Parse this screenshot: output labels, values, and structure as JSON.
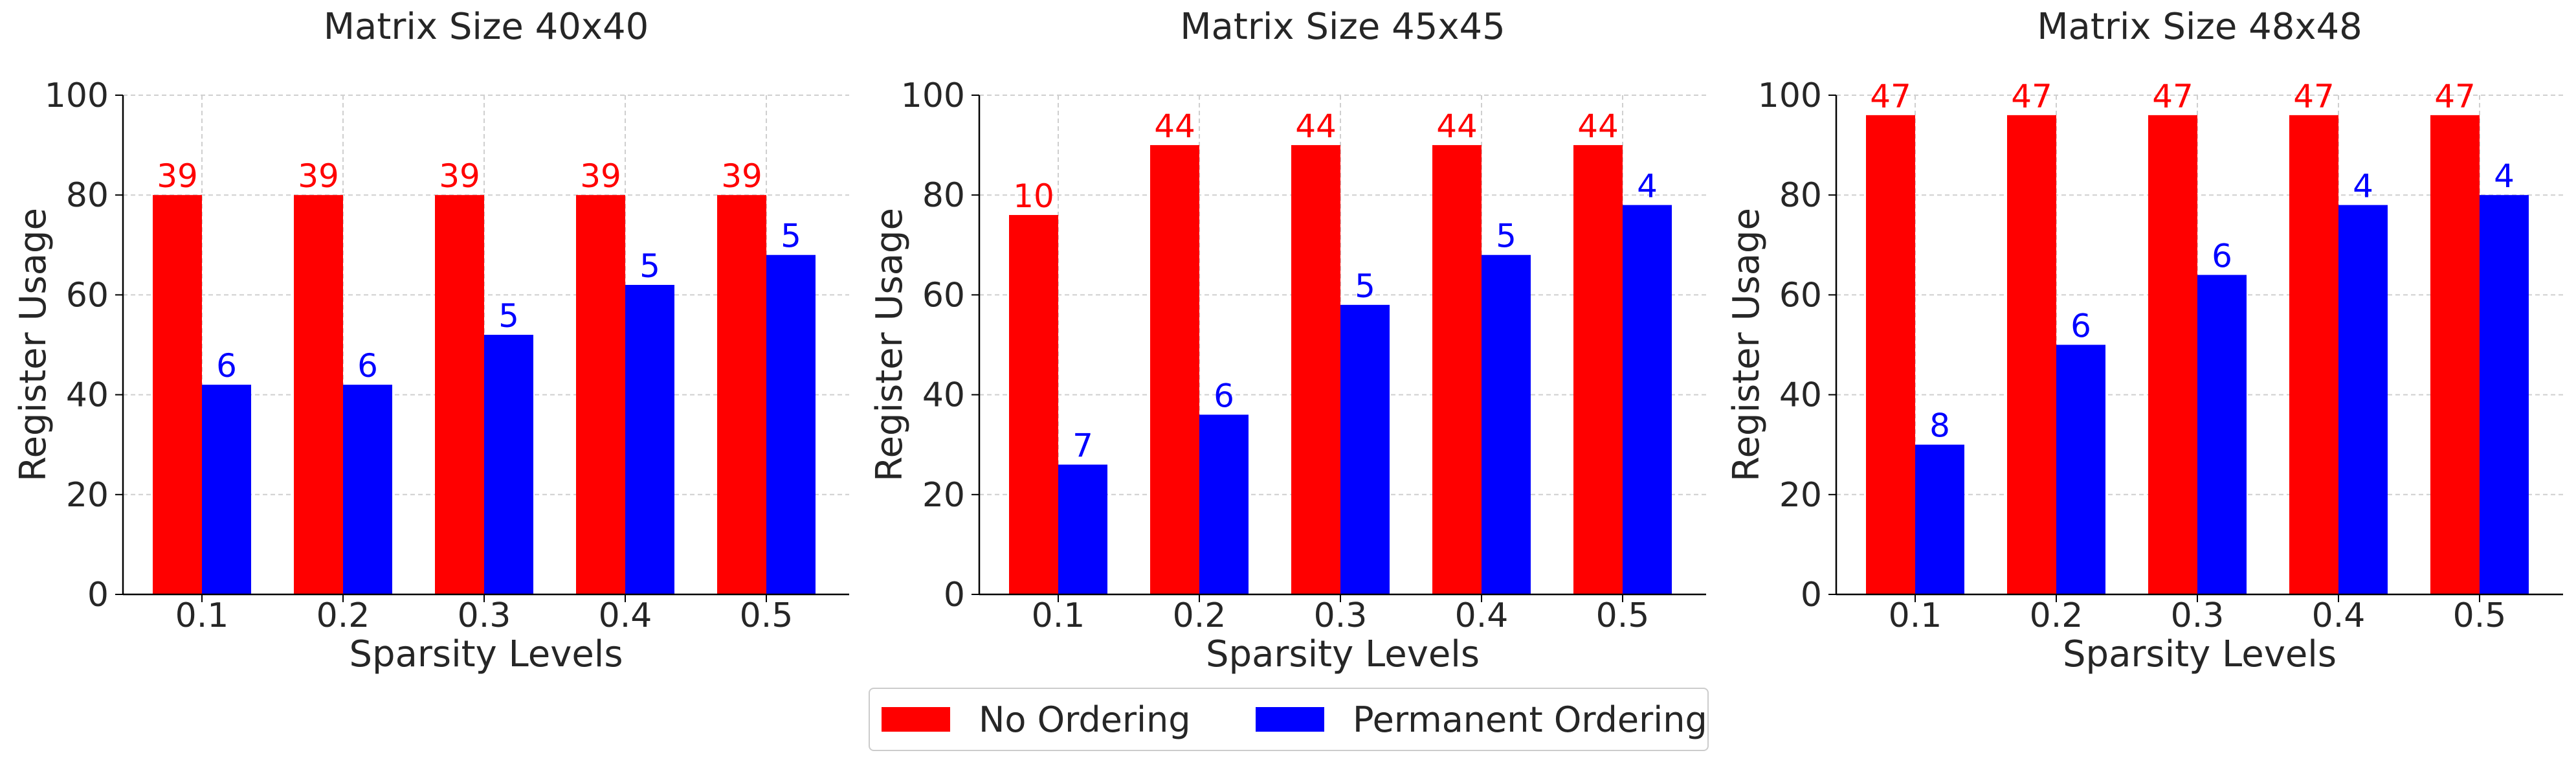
{
  "figure": {
    "legend": [
      {
        "label": "No Ordering",
        "color": "#ff0000"
      },
      {
        "label": "Permanent Ordering",
        "color": "#0000ff"
      }
    ]
  },
  "chart_data": [
    {
      "type": "bar",
      "title": "Matrix Size 40x40",
      "xlabel": "Sparsity Levels",
      "ylabel": "Register Usage",
      "categories": [
        "0.1",
        "0.2",
        "0.3",
        "0.4",
        "0.5"
      ],
      "ylim": [
        0,
        100
      ],
      "yticks": [
        "0",
        "20",
        "40",
        "60",
        "80",
        "100"
      ],
      "grid": true,
      "series": [
        {
          "name": "No Ordering",
          "color": "#ff0000",
          "values": [
            80,
            80,
            80,
            80,
            80
          ],
          "labels": [
            "39",
            "39",
            "39",
            "39",
            "39"
          ]
        },
        {
          "name": "Permanent Ordering",
          "color": "#0000ff",
          "values": [
            42,
            42,
            52,
            62,
            68
          ],
          "labels": [
            "6",
            "6",
            "5",
            "5",
            "5"
          ]
        }
      ]
    },
    {
      "type": "bar",
      "title": "Matrix Size 45x45",
      "xlabel": "Sparsity Levels",
      "ylabel": "Register Usage",
      "categories": [
        "0.1",
        "0.2",
        "0.3",
        "0.4",
        "0.5"
      ],
      "ylim": [
        0,
        100
      ],
      "yticks": [
        "0",
        "20",
        "40",
        "60",
        "80",
        "100"
      ],
      "grid": true,
      "series": [
        {
          "name": "No Ordering",
          "color": "#ff0000",
          "values": [
            76,
            90,
            90,
            90,
            90
          ],
          "labels": [
            "10",
            "44",
            "44",
            "44",
            "44"
          ]
        },
        {
          "name": "Permanent Ordering",
          "color": "#0000ff",
          "values": [
            26,
            36,
            58,
            68,
            78
          ],
          "labels": [
            "7",
            "6",
            "5",
            "5",
            "4"
          ]
        }
      ]
    },
    {
      "type": "bar",
      "title": "Matrix Size 48x48",
      "xlabel": "Sparsity Levels",
      "ylabel": "Register Usage",
      "categories": [
        "0.1",
        "0.2",
        "0.3",
        "0.4",
        "0.5"
      ],
      "ylim": [
        0,
        100
      ],
      "yticks": [
        "0",
        "20",
        "40",
        "60",
        "80",
        "100"
      ],
      "grid": true,
      "series": [
        {
          "name": "No Ordering",
          "color": "#ff0000",
          "values": [
            96,
            96,
            96,
            96,
            96
          ],
          "labels": [
            "47",
            "47",
            "47",
            "47",
            "47"
          ]
        },
        {
          "name": "Permanent Ordering",
          "color": "#0000ff",
          "values": [
            30,
            50,
            64,
            78,
            80
          ],
          "labels": [
            "8",
            "6",
            "6",
            "4",
            "4"
          ]
        }
      ]
    }
  ]
}
